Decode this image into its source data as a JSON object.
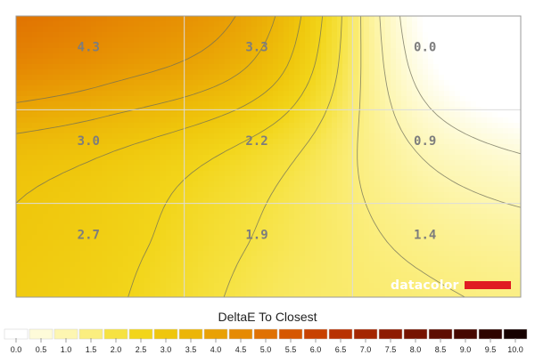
{
  "chart_data": {
    "type": "heatmap",
    "title": "DeltaE To Closest",
    "rows": 3,
    "cols": 3,
    "values": [
      [
        4.3,
        3.3,
        0.0
      ],
      [
        3.0,
        2.2,
        0.9
      ],
      [
        2.7,
        1.9,
        1.4
      ]
    ],
    "labels": [
      [
        "4.3",
        "3.3",
        "0.0"
      ],
      [
        "3.0",
        "2.2",
        "0.9"
      ],
      [
        "2.7",
        "1.9",
        "1.4"
      ]
    ],
    "scale": {
      "min": 0,
      "max": 10,
      "ticks": [
        "0.0",
        "0.5",
        "1.0",
        "1.5",
        "2.0",
        "2.5",
        "3.0",
        "3.5",
        "4.0",
        "4.5",
        "5.0",
        "5.5",
        "6.0",
        "6.5",
        "7.0",
        "7.5",
        "8.0",
        "8.5",
        "9.0",
        "9.5",
        "10.0"
      ],
      "colors": [
        "#ffffff",
        "#fefbd9",
        "#fdf6b1",
        "#fbee7f",
        "#f6e241",
        "#f2d51a",
        "#efc60c",
        "#ecb508",
        "#e9a105",
        "#e68a03",
        "#e07102",
        "#d65701",
        "#c84101",
        "#b83101",
        "#a42501",
        "#8e1b01",
        "#761301",
        "#5e0d01",
        "#460801",
        "#2e0400",
        "#160100"
      ]
    },
    "contours": "on",
    "grid": "on",
    "colors": {
      "grid": "#dcdcdc",
      "contour": "#6e6e5a",
      "brand_accent": "#e01b22"
    },
    "watermark": "datacolor"
  }
}
